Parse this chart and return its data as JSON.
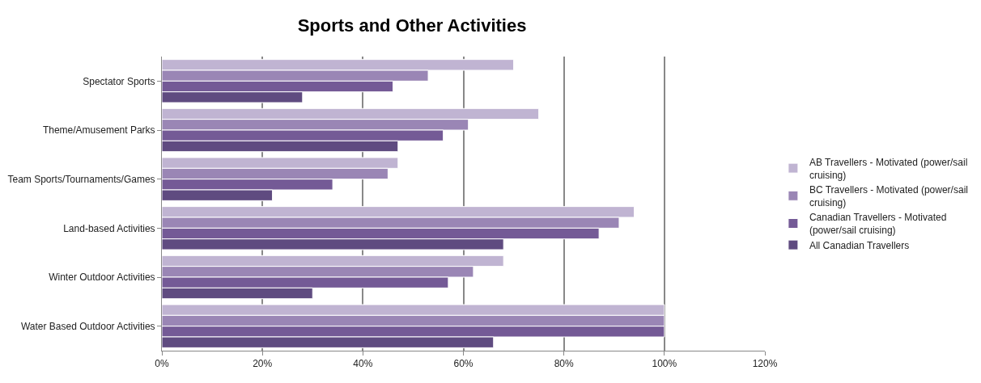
{
  "chart_data": {
    "type": "bar",
    "orientation": "horizontal",
    "title": "Sports and Other Activities",
    "categories": [
      "Spectator Sports",
      "Theme/Amusement Parks",
      "Team Sports/Tournaments/Games",
      "Land-based Activities",
      "Winter Outdoor Activities",
      "Water Based Outdoor Activities"
    ],
    "series": [
      {
        "name": "AB Travellers - Motivated (power/sail cruising)",
        "color": "#c0b4d2",
        "values": [
          70,
          75,
          47,
          94,
          68,
          100
        ]
      },
      {
        "name": "BC Travellers - Motivated (power/sail cruising)",
        "color": "#9a86b5",
        "values": [
          53,
          61,
          45,
          91,
          62,
          100
        ]
      },
      {
        "name": "Canadian Travellers - Motivated (power/sail cruising)",
        "color": "#745a96",
        "values": [
          46,
          56,
          34,
          87,
          57,
          100
        ]
      },
      {
        "name": "All Canadian Travellers",
        "color": "#5f4b80",
        "values": [
          28,
          47,
          22,
          68,
          30,
          66
        ]
      }
    ],
    "xlim": [
      0,
      120
    ],
    "xticks": [
      {
        "value": 0,
        "label": "0%"
      },
      {
        "value": 20,
        "label": "20%"
      },
      {
        "value": 40,
        "label": "40%"
      },
      {
        "value": 60,
        "label": "60%"
      },
      {
        "value": 80,
        "label": "80%"
      },
      {
        "value": 100,
        "label": "100%"
      },
      {
        "value": 120,
        "label": "120%"
      }
    ],
    "grid": "x",
    "legend": "right"
  }
}
